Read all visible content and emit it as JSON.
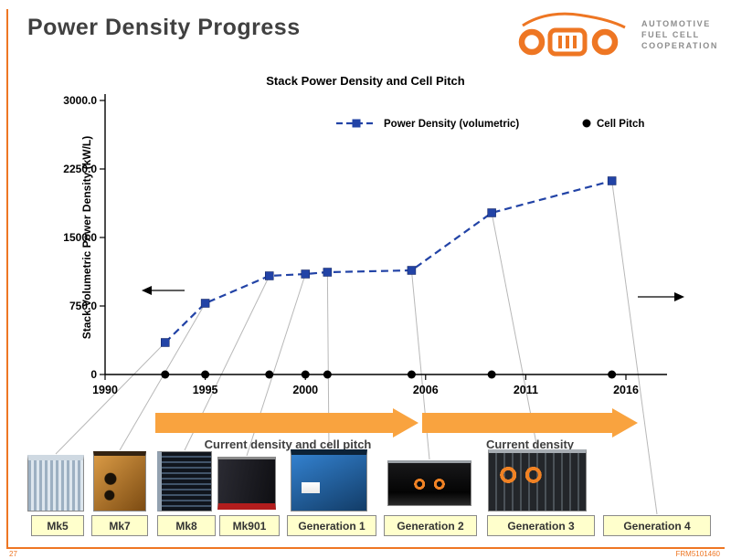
{
  "slide": {
    "title": "Power Density Progress",
    "page_number": "27",
    "footer_code": "FRM5101460"
  },
  "logo": {
    "line1": "AUTOMOTIVE",
    "line2": "FUEL CELL",
    "line3": "COOPERATION",
    "accent_color": "#EE7623"
  },
  "chart_data": {
    "type": "line",
    "title": "Stack Power Density and Cell Pitch",
    "ylabel": "Stack Volumetric Power Density (kW/L)",
    "ylim": [
      0,
      3000
    ],
    "yticks": [
      0,
      750,
      1500,
      2250,
      3000
    ],
    "ytick_labels": [
      "0",
      "750.0",
      "1500.0",
      "2250.0",
      "3000.0"
    ],
    "xlim": [
      1990,
      2016
    ],
    "xticks": [
      1990,
      1995,
      2000,
      2006,
      2011,
      2016
    ],
    "grid": false,
    "legend_position": "top-center-inside",
    "series": [
      {
        "name": "Power Density (volumetric)",
        "color": "#2243A6",
        "style": "dashed",
        "marker": "square",
        "x": [
          1993,
          1995,
          1998.2,
          2000,
          2001.1,
          2005.3,
          2009.3,
          2015.3
        ],
        "y": [
          350,
          780,
          1080,
          1100,
          1120,
          1140,
          1770,
          2120
        ]
      },
      {
        "name": "Cell Pitch",
        "color": "#000000",
        "style": "markers-only",
        "marker": "circle",
        "x": [
          1993,
          1995,
          1998.2,
          2000,
          2001.1,
          2005.3,
          2009.3,
          2015.3
        ],
        "y": [
          0,
          0,
          0,
          0,
          0,
          0,
          0,
          0
        ]
      }
    ],
    "annotations": [
      "axis-arrow-left",
      "axis-arrow-right"
    ]
  },
  "banners": [
    {
      "label": "Current density and cell pitch"
    },
    {
      "label": "Current density"
    }
  ],
  "banner_color": "#F9A33F",
  "products": [
    {
      "label": "Mk5"
    },
    {
      "label": "Mk7"
    },
    {
      "label": "Mk8"
    },
    {
      "label": "Mk901"
    },
    {
      "label": "Generation 1"
    },
    {
      "label": "Generation 2"
    },
    {
      "label": "Generation 3"
    },
    {
      "label": "Generation 4"
    }
  ]
}
